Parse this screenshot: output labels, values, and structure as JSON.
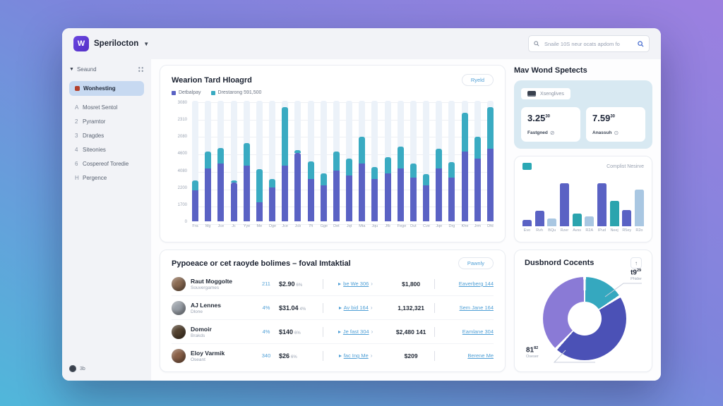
{
  "window": {
    "brand": {
      "logo_letter": "W",
      "name": "Sperilocton",
      "accent_color": "#5f3dd6"
    },
    "search": {
      "placeholder": "Snaile 10S neur ocats apdom fo"
    }
  },
  "sidebar": {
    "section_label": "Seaund",
    "active_item": {
      "label": "Wonhesting",
      "icon_color": "#b3402c",
      "bg_color": "#c7d9f1"
    },
    "items": [
      {
        "prefix": "A",
        "label": "Mosret Sentol"
      },
      {
        "prefix": "2",
        "label": "Pyramtor"
      },
      {
        "prefix": "3",
        "label": "Dragdes"
      },
      {
        "prefix": "4",
        "label": "Siteonies"
      },
      {
        "prefix": "6",
        "label": "Cospereof Toredie"
      },
      {
        "prefix": "H",
        "label": "Pergence"
      }
    ],
    "footer_label": "3b"
  },
  "main_chart": {
    "title": "Wearion Tard Hloagrd",
    "button_label": "Ryeld",
    "legend": [
      {
        "label": "Detbalpay",
        "color": "#5a62c4"
      },
      {
        "label": "Drestarong 591,500",
        "color": "#3aabc2"
      }
    ]
  },
  "stats_panel": {
    "title": "Mav Wond Spetects",
    "chip_label": "Xsenglives",
    "metrics": [
      {
        "value": "3.25",
        "sup": "30",
        "label": "Fastgned",
        "icon_glyph": "⊘"
      },
      {
        "value": "7.59",
        "sup": "30",
        "label": "Anassuh",
        "icon_glyph": "⊙"
      }
    ],
    "card_color": "#d8e9f2"
  },
  "mini_chart": {
    "caption": "Complist Nesirve"
  },
  "table": {
    "title": "Pypoeace or cet raoyde bolimes – foval Imtaktial",
    "button_label": "Pawnly",
    "rows": [
      {
        "name": "Raut Moggolte",
        "subtitle": "Souvergames",
        "badge": "211",
        "amount": "$2.90",
        "amount_suffix": "6%",
        "link1": "be We 306",
        "value": "$1,800",
        "link2": "Eaverberg 144",
        "avatar_color": "#8a6a52"
      },
      {
        "name": "AJ Lennes",
        "subtitle": "Dlone",
        "badge": "4%",
        "amount": "$31.04",
        "amount_suffix": "4%",
        "link1": "Av bid 164",
        "value": "1,132,321",
        "link2": "Sem Jane 164",
        "avatar_color": "#9aa0a8"
      },
      {
        "name": "Domoir",
        "subtitle": "Brakds",
        "badge": "4%",
        "amount": "$140",
        "amount_suffix": "6%",
        "link1": "Je fast 304",
        "value": "$2,480 141",
        "link2": "Eamlane 304",
        "avatar_color": "#52412f"
      },
      {
        "name": "Eloy Varmik",
        "subtitle": "Oseant",
        "badge": "340",
        "amount": "$26",
        "amount_suffix": "6%",
        "link1": "fac Ing Me",
        "value": "$209",
        "link2": "Berene Me",
        "avatar_color": "#8a6148"
      }
    ]
  },
  "donut": {
    "title": "Dusbnord Cocents",
    "button_glyph": "↑",
    "callout_top": {
      "value": "t9",
      "sup": "29",
      "label": "Phider"
    },
    "callout_bottom": {
      "value": "81",
      "sup": "82",
      "label": "Oseser"
    }
  },
  "chart_data": [
    {
      "id": "main-stacked-bar",
      "type": "bar",
      "stacked": true,
      "title": "Wearion Tard Hloagrd",
      "xlabel": "",
      "ylabel": "",
      "grid": true,
      "legend_position": "top-left",
      "ylim": [
        0,
        100
      ],
      "y_ticks_top_to_bottom": [
        "3080",
        "2310",
        "2080",
        "4600",
        "4080",
        "2200",
        "1700",
        "0"
      ],
      "categories": [
        "Fra",
        "Mg",
        "Jce",
        "Jc",
        "Yye",
        "Me",
        "Dge",
        "Jce",
        "Jcb",
        "7ft",
        "Gge",
        "Det",
        "Jqt",
        "Mta",
        "Jqu",
        "Jfb",
        "Fege",
        "Dut",
        "Cve",
        "Jqe",
        "Drg",
        "Khe",
        "Jrm",
        "Dfd"
      ],
      "series": [
        {
          "name": "Detbalpay",
          "color": "#5a62c4",
          "values": [
            26,
            44,
            48,
            32,
            46,
            16,
            28,
            46,
            57,
            35,
            30,
            42,
            38,
            48,
            35,
            40,
            44,
            36,
            30,
            44,
            36,
            58,
            52,
            60
          ]
        },
        {
          "name": "Drestarong 591,500",
          "color": "#3aabc2",
          "values": [
            8,
            14,
            13,
            2,
            19,
            27,
            7,
            49,
            2,
            15,
            10,
            16,
            14,
            22,
            10,
            13,
            18,
            12,
            9,
            16,
            13,
            32,
            18,
            35
          ]
        }
      ]
    },
    {
      "id": "mini-bar",
      "type": "bar",
      "title": "Complist Nesirve",
      "ylim": [
        0,
        100
      ],
      "categories": [
        "Evo",
        "Rvh",
        "BQu",
        "Rzer",
        "Avss",
        "R2A",
        "IPud",
        "Neej",
        "R5ey",
        "R2o"
      ],
      "values": [
        12,
        30,
        15,
        85,
        25,
        20,
        85,
        50,
        32,
        72
      ],
      "colors": [
        "#5a62c4",
        "#5a62c4",
        "#a9c7e2",
        "#5a62c4",
        "#2ba4ae",
        "#a9c7e2",
        "#5a62c4",
        "#2ba4ae",
        "#5a62c4",
        "#a9c7e2"
      ]
    },
    {
      "id": "donut",
      "type": "pie",
      "title": "Dusbnord Cocents",
      "slices": [
        {
          "label": "t9 29",
          "value": 16,
          "color": "#35a8bf"
        },
        {
          "label": "",
          "value": 46,
          "color": "#4b51b6"
        },
        {
          "label": "81 82",
          "value": 38,
          "color": "#8a7ad6"
        }
      ]
    }
  ]
}
